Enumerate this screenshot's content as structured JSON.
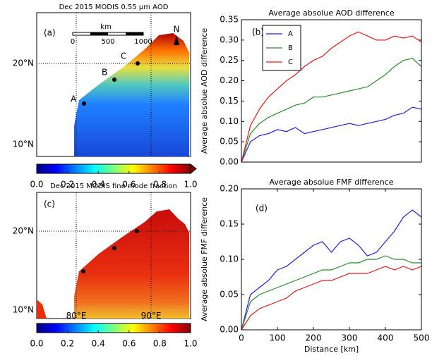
{
  "maps": [
    {
      "title": "Dec 2015 MODIS 0.55 μm AOD",
      "panel": "(a)",
      "lat_labels": [
        "20°N",
        "10°N"
      ],
      "scale_bar": {
        "unit": "km",
        "labels": [
          "0",
          "500",
          "1000"
        ]
      },
      "north": "N",
      "points": [
        "A",
        "B",
        "C"
      ],
      "colorbar": {
        "lim": [
          0,
          1
        ],
        "ticks": [
          {
            "value": 0,
            "label": "0.0"
          },
          {
            "value": 0.2,
            "label": "0.2"
          },
          {
            "value": 0.4,
            "label": "0.4"
          },
          {
            "value": 0.6,
            "label": "0.6"
          },
          {
            "value": 0.8,
            "label": "0.8"
          },
          {
            "value": 1,
            "label": "1.0"
          }
        ]
      }
    },
    {
      "title": "Dec 2015 MODIS fine mode fraction",
      "panel": "(c)",
      "lat_labels": [
        "20°N",
        "10°N"
      ],
      "lon_labels": [
        "80°E",
        "90°E"
      ],
      "colorbar": {
        "lim": [
          0,
          1
        ],
        "ticks": [
          {
            "value": 0,
            "label": "0.0"
          },
          {
            "value": 0.2,
            "label": "0.2"
          },
          {
            "value": 0.4,
            "label": "0.4"
          },
          {
            "value": 0.6,
            "label": "0.6"
          },
          {
            "value": 0.8,
            "label": "0.8"
          },
          {
            "value": 1,
            "label": "1.0"
          }
        ]
      }
    }
  ],
  "chart_data": [
    {
      "type": "line",
      "title": "Average absolue AOD difference",
      "panel": "(b)",
      "ylabel": "Average absolue AOD difference",
      "legend": "upper left",
      "x": [
        0,
        25,
        50,
        75,
        100,
        125,
        150,
        175,
        200,
        225,
        250,
        275,
        300,
        325,
        350,
        375,
        400,
        425,
        450,
        475,
        500
      ],
      "xlim": [
        0,
        500
      ],
      "ylim": [
        0,
        0.35
      ],
      "yticks": [
        {
          "value": 0,
          "label": "0.00"
        },
        {
          "value": 0.05,
          "label": "0.05"
        },
        {
          "value": 0.1,
          "label": "0.10"
        },
        {
          "value": 0.15,
          "label": "0.15"
        },
        {
          "value": 0.2,
          "label": "0.20"
        },
        {
          "value": 0.25,
          "label": "0.25"
        },
        {
          "value": 0.3,
          "label": "0.30"
        },
        {
          "value": 0.35,
          "label": "0.35"
        }
      ],
      "series": [
        {
          "name": "A",
          "color": "#1f1fd6",
          "values": [
            0,
            0.05,
            0.065,
            0.07,
            0.08,
            0.075,
            0.085,
            0.07,
            0.075,
            0.08,
            0.085,
            0.09,
            0.095,
            0.09,
            0.095,
            0.1,
            0.105,
            0.115,
            0.12,
            0.135,
            0.13
          ]
        },
        {
          "name": "B",
          "color": "#2a8a2a",
          "values": [
            0,
            0.07,
            0.095,
            0.11,
            0.12,
            0.13,
            0.14,
            0.145,
            0.16,
            0.16,
            0.165,
            0.17,
            0.175,
            0.18,
            0.185,
            0.2,
            0.215,
            0.235,
            0.25,
            0.255,
            0.235
          ]
        },
        {
          "name": "C",
          "color": "#e01818",
          "values": [
            0,
            0.09,
            0.13,
            0.16,
            0.18,
            0.2,
            0.215,
            0.235,
            0.25,
            0.26,
            0.28,
            0.295,
            0.31,
            0.32,
            0.31,
            0.3,
            0.3,
            0.31,
            0.305,
            0.31,
            0.295
          ]
        }
      ]
    },
    {
      "type": "line",
      "title": "Average absolue FMF difference",
      "panel": "(d)",
      "ylabel": "Average absolue FMF difference",
      "xlabel": "Distance [km]",
      "x": [
        0,
        25,
        50,
        75,
        100,
        125,
        150,
        175,
        200,
        225,
        250,
        275,
        300,
        325,
        350,
        375,
        400,
        425,
        450,
        475,
        500
      ],
      "xlim": [
        0,
        500
      ],
      "ylim": [
        0,
        0.2
      ],
      "xticks": [
        0,
        100,
        200,
        300,
        400,
        500
      ],
      "yticks": [
        {
          "value": 0,
          "label": "0.00"
        },
        {
          "value": 0.05,
          "label": "0.05"
        },
        {
          "value": 0.1,
          "label": "0.10"
        },
        {
          "value": 0.15,
          "label": "0.15"
        },
        {
          "value": 0.2,
          "label": "0.20"
        }
      ],
      "series": [
        {
          "name": "A",
          "color": "#1f1fd6",
          "values": [
            0,
            0.05,
            0.06,
            0.07,
            0.085,
            0.09,
            0.1,
            0.11,
            0.12,
            0.125,
            0.11,
            0.125,
            0.13,
            0.12,
            0.105,
            0.11,
            0.125,
            0.14,
            0.16,
            0.17,
            0.16
          ]
        },
        {
          "name": "B",
          "color": "#2a8a2a",
          "values": [
            0,
            0.04,
            0.05,
            0.055,
            0.06,
            0.065,
            0.07,
            0.075,
            0.08,
            0.085,
            0.085,
            0.09,
            0.095,
            0.095,
            0.1,
            0.1,
            0.105,
            0.1,
            0.1,
            0.095,
            0.095
          ]
        },
        {
          "name": "C",
          "color": "#e01818",
          "values": [
            0,
            0.02,
            0.03,
            0.035,
            0.04,
            0.045,
            0.055,
            0.06,
            0.065,
            0.07,
            0.07,
            0.075,
            0.08,
            0.08,
            0.08,
            0.085,
            0.09,
            0.085,
            0.09,
            0.085,
            0.09
          ]
        }
      ]
    }
  ]
}
